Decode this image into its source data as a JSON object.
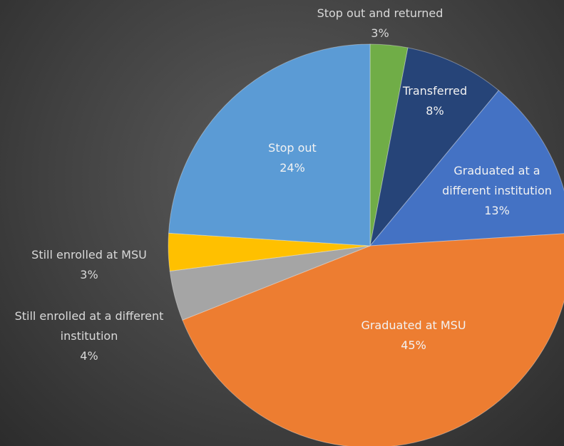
{
  "chart_data": {
    "type": "pie",
    "categories": [
      "Stop out and returned",
      "Transferred",
      "Graduated at a different institution",
      "Graduated at MSU",
      "Still enrolled at a different institution",
      "Still enrolled at MSU",
      "Stop out"
    ],
    "values": [
      3,
      8,
      13,
      45,
      4,
      3,
      24
    ],
    "value_labels": [
      "3%",
      "8%",
      "13%",
      "45%",
      "4%",
      "3%",
      "24%"
    ],
    "colors": [
      "#70ad47",
      "#264478",
      "#4472c4",
      "#ed7d31",
      "#a5a5a5",
      "#ffc000",
      "#5b9bd5"
    ]
  }
}
